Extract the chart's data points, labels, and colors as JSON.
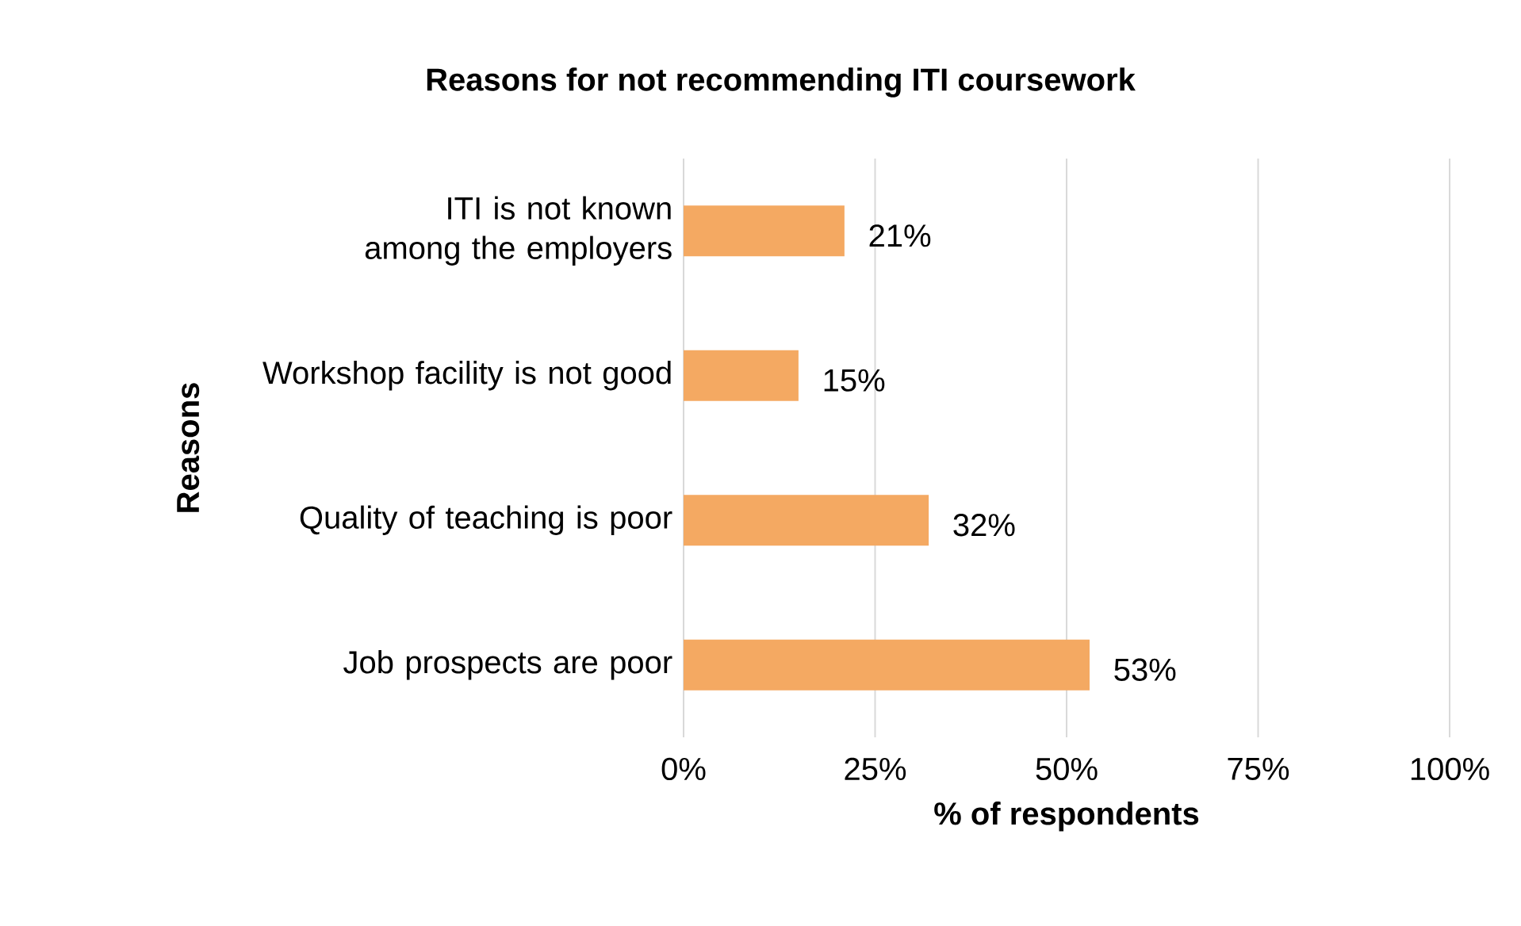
{
  "chart_data": {
    "type": "bar",
    "orientation": "horizontal",
    "title": "Reasons for not recommending ITI coursework",
    "xlabel": "% of respondents",
    "ylabel": "Reasons",
    "categories": [
      "ITI is not known among the employers",
      "Workshop facility is not good",
      "Quality of teaching is poor",
      "Job prospects are poor"
    ],
    "values": [
      21,
      15,
      32,
      53
    ],
    "value_labels": [
      "21%",
      "15%",
      "32%",
      "53%"
    ],
    "color": "#f4a962",
    "xlim": [
      0,
      100
    ],
    "xticks": [
      {
        "value": 0,
        "label": "0%"
      },
      {
        "value": 25,
        "label": "25%"
      },
      {
        "value": 50,
        "label": "50%"
      },
      {
        "value": 75,
        "label": "75%"
      },
      {
        "value": 100,
        "label": "100%"
      }
    ],
    "grid": "x"
  }
}
